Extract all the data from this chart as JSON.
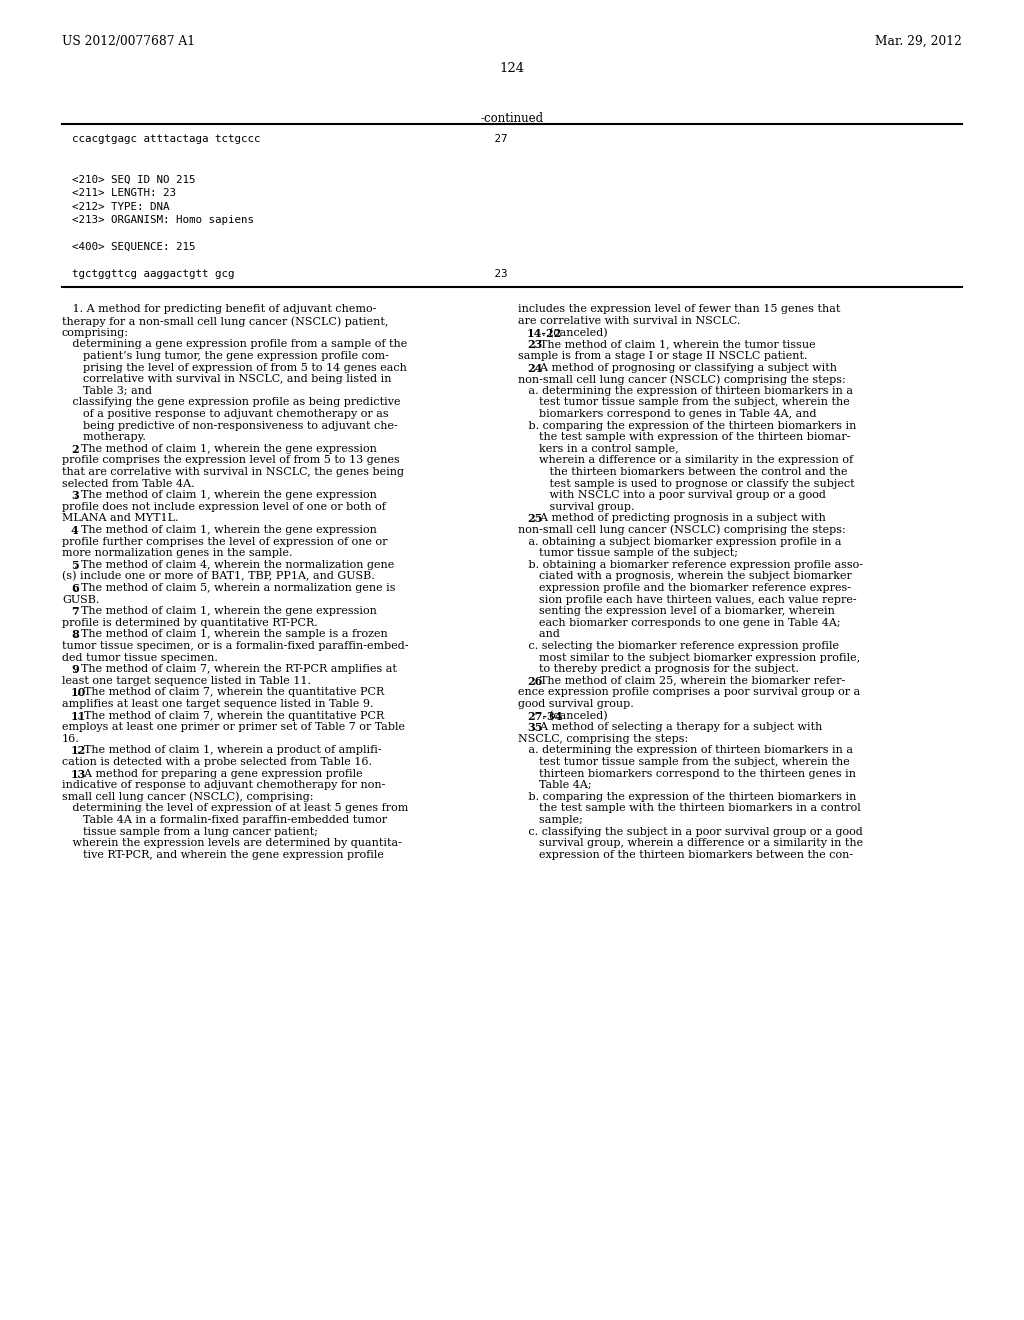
{
  "background_color": "#ffffff",
  "header_left": "US 2012/0077687 A1",
  "header_right": "Mar. 29, 2012",
  "page_number": "124",
  "continued_label": "-continued",
  "sequence_block": [
    "ccacgtgagc atttactaga tctgccc                                    27",
    "",
    "",
    "<210> SEQ ID NO 215",
    "<211> LENGTH: 23",
    "<212> TYPE: DNA",
    "<213> ORGANISM: Homo sapiens",
    "",
    "<400> SEQUENCE: 215",
    "",
    "tgctggttcg aaggactgtt gcg                                        23"
  ],
  "left_col_lines": [
    {
      "t": "   1. A method for predicting benefit of adjuvant chemo-",
      "b": false
    },
    {
      "t": "therapy for a non-small cell lung cancer (NSCLC) patient,",
      "b": false
    },
    {
      "t": "comprising:",
      "b": false
    },
    {
      "t": "   determining a gene expression profile from a sample of the",
      "b": false
    },
    {
      "t": "      patient’s lung tumor, the gene expression profile com-",
      "b": false
    },
    {
      "t": "      prising the level of expression of from 5 to 14 genes each",
      "b": false
    },
    {
      "t": "      correlative with survival in NSCLC, and being listed in",
      "b": false
    },
    {
      "t": "      Table 3; and",
      "b": false
    },
    {
      "t": "   classifying the gene expression profile as being predictive",
      "b": false
    },
    {
      "t": "      of a positive response to adjuvant chemotherapy or as",
      "b": false
    },
    {
      "t": "      being predictive of non-responsiveness to adjuvant che-",
      "b": false
    },
    {
      "t": "      motherapy.",
      "b": false
    },
    {
      "t": "   2. The method of claim 1, wherein the gene expression",
      "b": false,
      "bold_prefix": "2"
    },
    {
      "t": "profile comprises the expression level of from 5 to 13 genes",
      "b": false
    },
    {
      "t": "that are correlative with survival in NSCLC, the genes being",
      "b": false
    },
    {
      "t": "selected from Table 4A.",
      "b": false
    },
    {
      "t": "   3. The method of claim 1, wherein the gene expression",
      "b": false,
      "bold_prefix": "3"
    },
    {
      "t": "profile does not include expression level of one or both of",
      "b": false
    },
    {
      "t": "MLANA and MYT1L.",
      "b": false
    },
    {
      "t": "   4. The method of claim 1, wherein the gene expression",
      "b": false,
      "bold_prefix": "4"
    },
    {
      "t": "profile further comprises the level of expression of one or",
      "b": false
    },
    {
      "t": "more normalization genes in the sample.",
      "b": false
    },
    {
      "t": "   5. The method of claim 4, wherein the normalization gene",
      "b": false,
      "bold_prefix": "5"
    },
    {
      "t": "(s) include one or more of BAT1, TBP, PP1A, and GUSB.",
      "b": false
    },
    {
      "t": "   6. The method of claim 5, wherein a normalization gene is",
      "b": false,
      "bold_prefix": "6"
    },
    {
      "t": "GUSB.",
      "b": false
    },
    {
      "t": "   7. The method of claim 1, wherein the gene expression",
      "b": false,
      "bold_prefix": "7"
    },
    {
      "t": "profile is determined by quantitative RT-PCR.",
      "b": false
    },
    {
      "t": "   8. The method of claim 1, wherein the sample is a frozen",
      "b": false,
      "bold_prefix": "8"
    },
    {
      "t": "tumor tissue specimen, or is a formalin-fixed paraffin-embed-",
      "b": false
    },
    {
      "t": "ded tumor tissue specimen.",
      "b": false
    },
    {
      "t": "   9. The method of claim 7, wherein the RT-PCR amplifies at",
      "b": false,
      "bold_prefix": "9"
    },
    {
      "t": "least one target sequence listed in Table 11.",
      "b": false
    },
    {
      "t": "   10. The method of claim 7, wherein the quantitative PCR",
      "b": false,
      "bold_prefix": "10"
    },
    {
      "t": "amplifies at least one target sequence listed in Table 9.",
      "b": false
    },
    {
      "t": "   11. The method of claim 7, wherein the quantitative PCR",
      "b": false,
      "bold_prefix": "11"
    },
    {
      "t": "employs at least one primer or primer set of Table 7 or Table",
      "b": false
    },
    {
      "t": "16.",
      "b": false
    },
    {
      "t": "   12. The method of claim 1, wherein a product of amplifi-",
      "b": false,
      "bold_prefix": "12"
    },
    {
      "t": "cation is detected with a probe selected from Table 16.",
      "b": false
    },
    {
      "t": "   13. A method for preparing a gene expression profile",
      "b": false,
      "bold_prefix": "13"
    },
    {
      "t": "indicative of response to adjuvant chemotherapy for non-",
      "b": false
    },
    {
      "t": "small cell lung cancer (NSCLC), comprising:",
      "b": false
    },
    {
      "t": "   determining the level of expression of at least 5 genes from",
      "b": false
    },
    {
      "t": "      Table 4A in a formalin-fixed paraffin-embedded tumor",
      "b": false
    },
    {
      "t": "      tissue sample from a lung cancer patient;",
      "b": false
    },
    {
      "t": "   wherein the expression levels are determined by quantita-",
      "b": false
    },
    {
      "t": "      tive RT-PCR, and wherein the gene expression profile",
      "b": false
    }
  ],
  "right_col_lines": [
    {
      "t": "includes the expression level of fewer than 15 genes that",
      "b": false
    },
    {
      "t": "are correlative with survival in NSCLC.",
      "b": false
    },
    {
      "t": "   14-22. (canceled)",
      "b": false,
      "bold_prefix": "14-22"
    },
    {
      "t": "   23. The method of claim 1, wherein the tumor tissue",
      "b": false,
      "bold_prefix": "23"
    },
    {
      "t": "sample is from a stage I or stage II NSCLC patient.",
      "b": false
    },
    {
      "t": "   24. A method of prognosing or classifying a subject with",
      "b": false,
      "bold_prefix": "24"
    },
    {
      "t": "non-small cell lung cancer (NSCLC) comprising the steps:",
      "b": false
    },
    {
      "t": "   a. determining the expression of thirteen biomarkers in a",
      "b": false
    },
    {
      "t": "      test tumor tissue sample from the subject, wherein the",
      "b": false
    },
    {
      "t": "      biomarkers correspond to genes in Table 4A, and",
      "b": false
    },
    {
      "t": "   b. comparing the expression of the thirteen biomarkers in",
      "b": false
    },
    {
      "t": "      the test sample with expression of the thirteen biomar-",
      "b": false
    },
    {
      "t": "      kers in a control sample,",
      "b": false
    },
    {
      "t": "      wherein a difference or a similarity in the expression of",
      "b": false
    },
    {
      "t": "         the thirteen biomarkers between the control and the",
      "b": false
    },
    {
      "t": "         test sample is used to prognose or classify the subject",
      "b": false
    },
    {
      "t": "         with NSCLC into a poor survival group or a good",
      "b": false
    },
    {
      "t": "         survival group.",
      "b": false
    },
    {
      "t": "   25. A method of predicting prognosis in a subject with",
      "b": false,
      "bold_prefix": "25"
    },
    {
      "t": "non-small cell lung cancer (NSCLC) comprising the steps:",
      "b": false
    },
    {
      "t": "   a. obtaining a subject biomarker expression profile in a",
      "b": false
    },
    {
      "t": "      tumor tissue sample of the subject;",
      "b": false
    },
    {
      "t": "   b. obtaining a biomarker reference expression profile asso-",
      "b": false
    },
    {
      "t": "      ciated with a prognosis, wherein the subject biomarker",
      "b": false
    },
    {
      "t": "      expression profile and the biomarker reference expres-",
      "b": false
    },
    {
      "t": "      sion profile each have thirteen values, each value repre-",
      "b": false
    },
    {
      "t": "      senting the expression level of a biomarker, wherein",
      "b": false
    },
    {
      "t": "      each biomarker corresponds to one gene in Table 4A;",
      "b": false
    },
    {
      "t": "      and",
      "b": false
    },
    {
      "t": "   c. selecting the biomarker reference expression profile",
      "b": false
    },
    {
      "t": "      most similar to the subject biomarker expression profile,",
      "b": false
    },
    {
      "t": "      to thereby predict a prognosis for the subject.",
      "b": false
    },
    {
      "t": "   26. The method of claim 25, wherein the biomarker refer-",
      "b": false,
      "bold_prefix": "26"
    },
    {
      "t": "ence expression profile comprises a poor survival group or a",
      "b": false
    },
    {
      "t": "good survival group.",
      "b": false
    },
    {
      "t": "   27-34. (canceled)",
      "b": false,
      "bold_prefix": "27-34"
    },
    {
      "t": "   35. A method of selecting a therapy for a subject with",
      "b": false,
      "bold_prefix": "35"
    },
    {
      "t": "NSCLC, comprising the steps:",
      "b": false
    },
    {
      "t": "   a. determining the expression of thirteen biomarkers in a",
      "b": false
    },
    {
      "t": "      test tumor tissue sample from the subject, wherein the",
      "b": false
    },
    {
      "t": "      thirteen biomarkers correspond to the thirteen genes in",
      "b": false
    },
    {
      "t": "      Table 4A;",
      "b": false
    },
    {
      "t": "   b. comparing the expression of the thirteen biomarkers in",
      "b": false
    },
    {
      "t": "      the test sample with the thirteen biomarkers in a control",
      "b": false
    },
    {
      "t": "      sample;",
      "b": false
    },
    {
      "t": "   c. classifying the subject in a poor survival group or a good",
      "b": false
    },
    {
      "t": "      survival group, wherein a difference or a similarity in the",
      "b": false
    },
    {
      "t": "      expression of the thirteen biomarkers between the con-",
      "b": false
    }
  ]
}
